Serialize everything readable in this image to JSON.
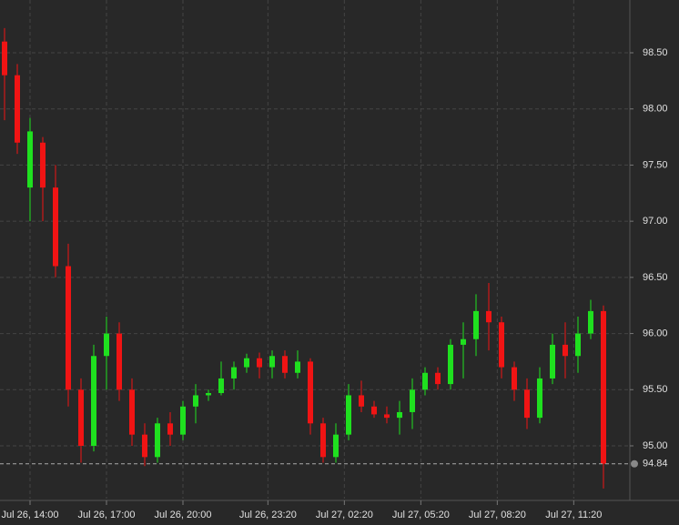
{
  "chart_data": {
    "type": "candlestick",
    "x": [
      "Jul 26, 13:00",
      "Jul 26, 13:30",
      "Jul 26, 14:00",
      "Jul 26, 14:30",
      "Jul 26, 15:00",
      "Jul 26, 15:30",
      "Jul 26, 16:00",
      "Jul 26, 16:30",
      "Jul 26, 17:00",
      "Jul 26, 17:30",
      "Jul 26, 18:00",
      "Jul 26, 18:30",
      "Jul 26, 19:00",
      "Jul 26, 19:30",
      "Jul 26, 20:00",
      "Jul 26, 20:30",
      "Jul 26, 21:00",
      "Jul 26, 21:30",
      "Jul 26, 22:00",
      "Jul 26, 22:30",
      "Jul 26, 23:00",
      "Jul 26, 23:30",
      "Jul 27, 00:00",
      "Jul 27, 00:30",
      "Jul 27, 01:00",
      "Jul 27, 01:30",
      "Jul 27, 02:00",
      "Jul 27, 02:30",
      "Jul 27, 03:00",
      "Jul 27, 03:30",
      "Jul 27, 04:00",
      "Jul 27, 04:30",
      "Jul 27, 05:00",
      "Jul 27, 05:30",
      "Jul 27, 06:00",
      "Jul 27, 06:30",
      "Jul 27, 07:00",
      "Jul 27, 07:30",
      "Jul 27, 08:00",
      "Jul 27, 08:30",
      "Jul 27, 09:00",
      "Jul 27, 09:30",
      "Jul 27, 10:00",
      "Jul 27, 10:30",
      "Jul 27, 11:00",
      "Jul 27, 11:30",
      "Jul 27, 12:00",
      "Jul 27, 12:30"
    ],
    "open": [
      98.6,
      98.3,
      97.3,
      97.7,
      97.3,
      96.6,
      95.5,
      95.0,
      95.8,
      96.0,
      95.5,
      95.1,
      94.9,
      95.2,
      95.1,
      95.35,
      95.45,
      95.47,
      95.6,
      95.7,
      95.78,
      95.7,
      95.8,
      95.65,
      95.75,
      95.2,
      94.9,
      95.1,
      95.45,
      95.35,
      95.28,
      95.25,
      95.3,
      95.5,
      95.65,
      95.55,
      95.9,
      95.95,
      96.2,
      96.1,
      95.7,
      95.5,
      95.25,
      95.6,
      95.9,
      95.8,
      96.0,
      96.2
    ],
    "high": [
      98.72,
      98.4,
      97.92,
      97.75,
      97.5,
      96.8,
      95.6,
      95.9,
      96.15,
      96.1,
      95.6,
      95.2,
      95.25,
      95.3,
      95.4,
      95.55,
      95.5,
      95.75,
      95.75,
      95.82,
      95.83,
      95.85,
      95.85,
      95.85,
      95.78,
      95.25,
      95.2,
      95.55,
      95.58,
      95.4,
      95.35,
      95.4,
      95.6,
      95.7,
      95.7,
      95.95,
      96.1,
      96.35,
      96.45,
      96.15,
      95.75,
      95.6,
      95.7,
      96.0,
      96.1,
      96.15,
      96.3,
      96.25
    ],
    "low": [
      97.9,
      97.6,
      97.0,
      97.0,
      96.5,
      95.35,
      94.85,
      94.95,
      95.5,
      95.4,
      95.0,
      94.82,
      94.85,
      95.0,
      95.05,
      95.2,
      95.4,
      95.45,
      95.5,
      95.65,
      95.6,
      95.6,
      95.6,
      95.6,
      95.1,
      94.85,
      94.85,
      95.05,
      95.3,
      95.25,
      95.2,
      95.1,
      95.15,
      95.45,
      95.5,
      95.5,
      95.6,
      95.8,
      95.85,
      95.6,
      95.4,
      95.15,
      95.2,
      95.55,
      95.6,
      95.65,
      95.95,
      94.62
    ],
    "close": [
      98.3,
      97.7,
      97.8,
      97.3,
      96.6,
      95.5,
      95.0,
      95.8,
      96.0,
      95.5,
      95.1,
      94.9,
      95.2,
      95.1,
      95.35,
      95.45,
      95.47,
      95.6,
      95.7,
      95.78,
      95.7,
      95.8,
      95.65,
      95.75,
      95.2,
      94.9,
      95.1,
      95.45,
      95.35,
      95.28,
      95.25,
      95.3,
      95.5,
      95.65,
      95.55,
      95.9,
      95.95,
      96.2,
      96.1,
      95.7,
      95.5,
      95.25,
      95.6,
      95.9,
      95.8,
      96.0,
      96.2,
      94.84
    ],
    "up_color": "#1fe01f",
    "down_color": "#f01414",
    "ylim": [
      94.53,
      98.97
    ],
    "yticks": [
      {
        "value": 95,
        "label": "95.00"
      },
      {
        "value": 95.5,
        "label": "95.50"
      },
      {
        "value": 96,
        "label": "96.00"
      },
      {
        "value": 96.5,
        "label": "96.50"
      },
      {
        "value": 97,
        "label": "97.00"
      },
      {
        "value": 97.5,
        "label": "97.50"
      },
      {
        "value": 98,
        "label": "98.00"
      },
      {
        "value": 98.5,
        "label": "98.50"
      }
    ],
    "xticks": [
      {
        "value": 2,
        "label": "Jul 26, 14:00"
      },
      {
        "value": 8,
        "label": "Jul 26, 17:00"
      },
      {
        "value": 14,
        "label": "Jul 26, 20:00"
      },
      {
        "value": 20.667,
        "label": "Jul 26, 23:20"
      },
      {
        "value": 26.667,
        "label": "Jul 27, 02:20"
      },
      {
        "value": 32.667,
        "label": "Jul 27, 05:20"
      },
      {
        "value": 38.667,
        "label": "Jul 27, 08:20"
      },
      {
        "value": 44.667,
        "label": "Jul 27, 11:20"
      }
    ],
    "last_price": 94.84,
    "grid": true
  }
}
